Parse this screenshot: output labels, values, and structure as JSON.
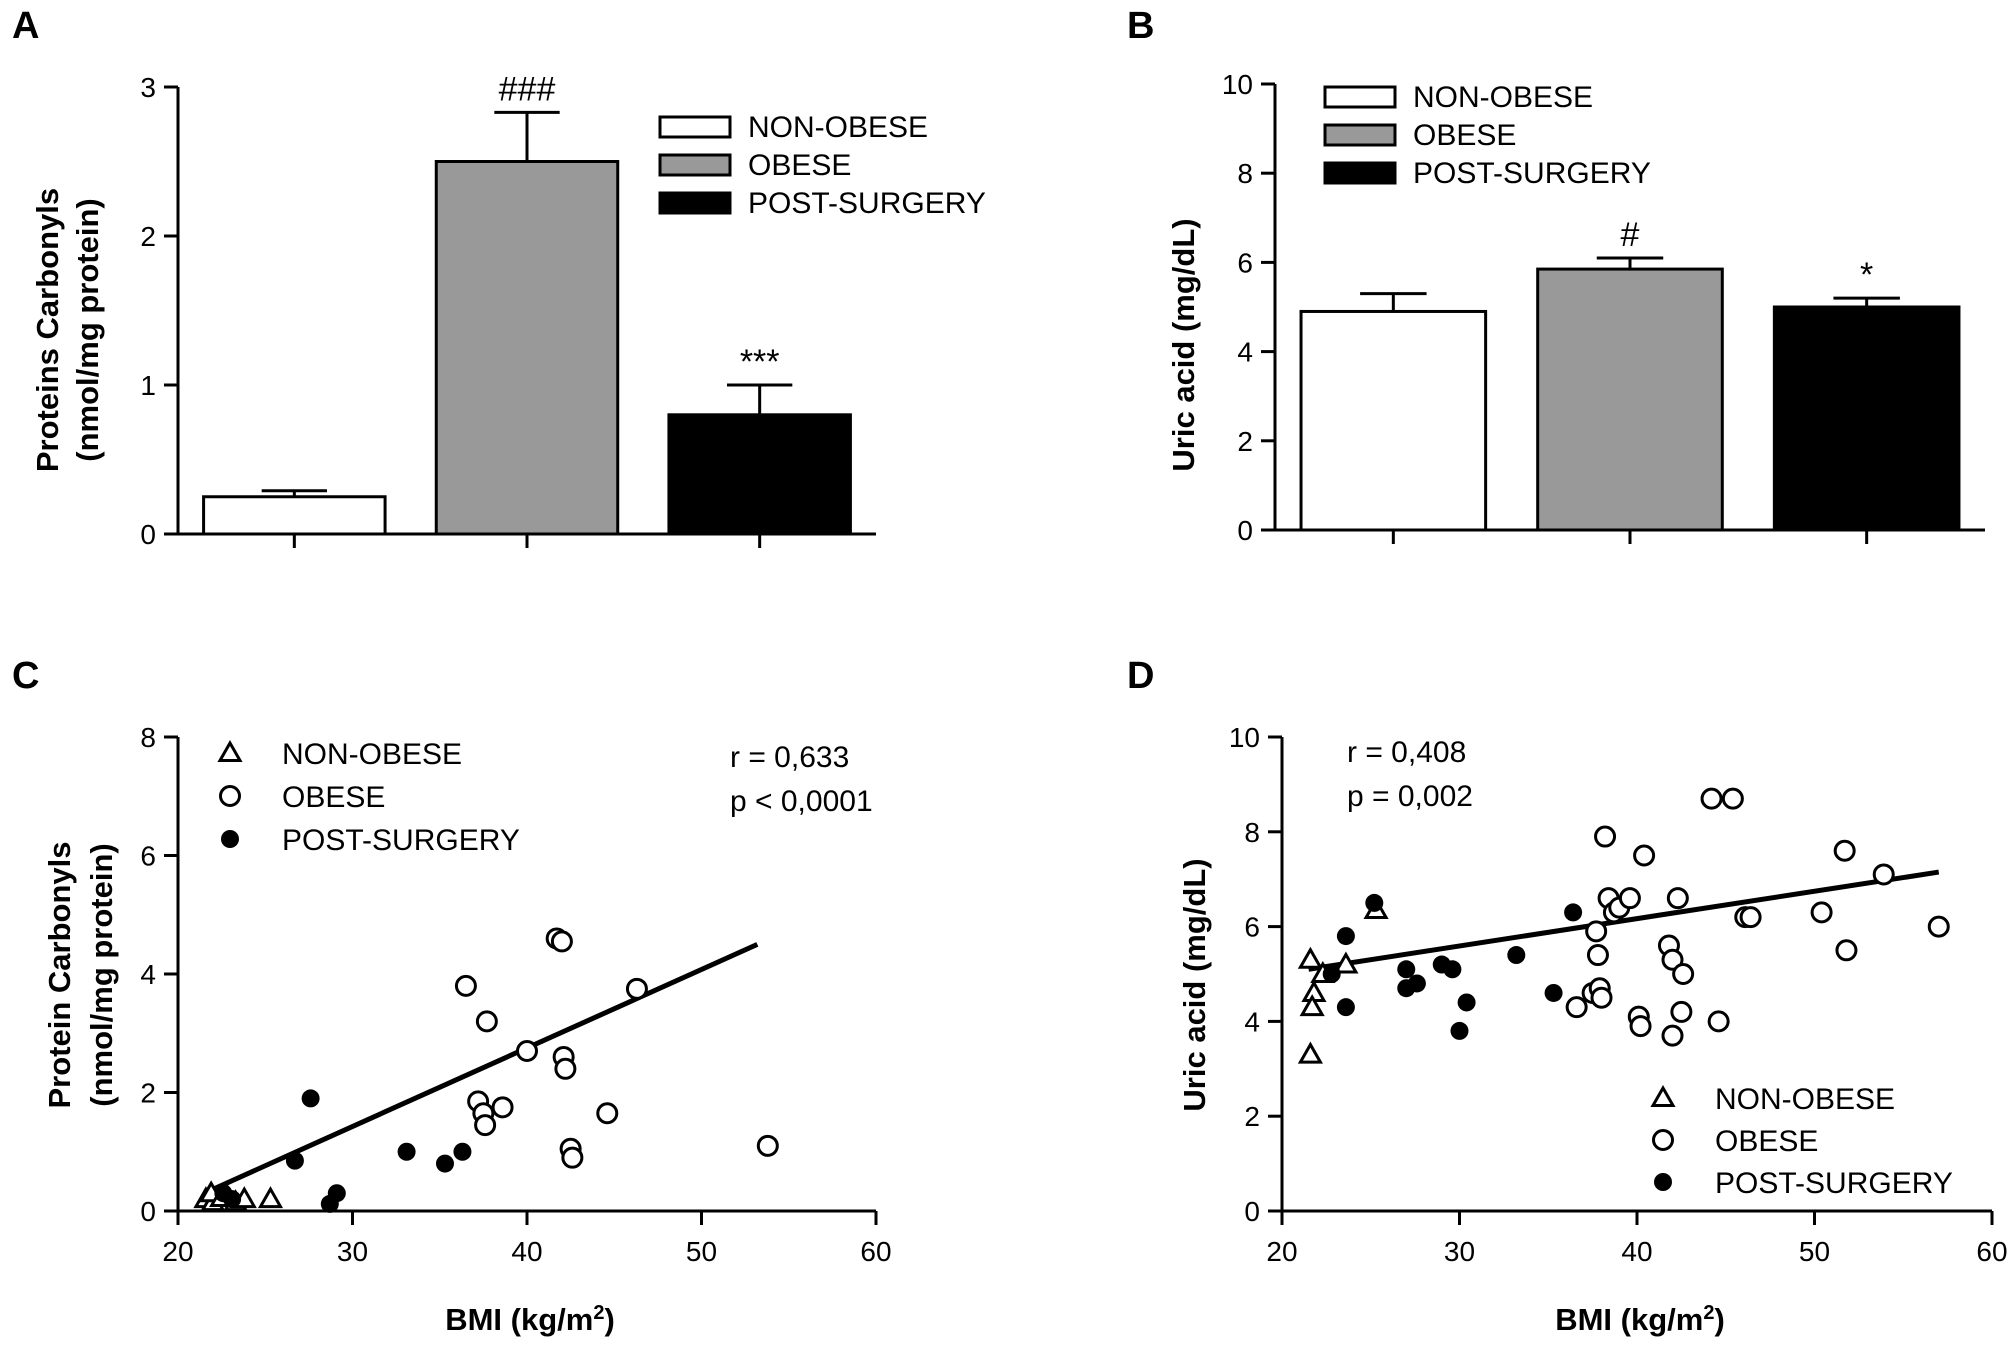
{
  "colors": {
    "non_obese": "#ffffff",
    "obese": "#999999",
    "post_surgery": "#000000",
    "axis": "#000000"
  },
  "chart_data": [
    {
      "panel": "A",
      "type": "bar",
      "ylabel_line1": "Proteins Carbonyls",
      "ylabel_line2": "(nmol/mg protein)",
      "xlabel": "",
      "ylim": [
        0,
        3
      ],
      "yticks": [
        "0",
        "1",
        "2",
        "3"
      ],
      "legend": [
        "NON-OBESE",
        "OBESE",
        "POST-SURGERY"
      ],
      "categories": [
        "NON-OBESE",
        "OBESE",
        "POST-SURGERY"
      ],
      "values": [
        0.25,
        2.5,
        0.8
      ],
      "errors": [
        0.04,
        0.33,
        0.2
      ],
      "annotations": [
        "",
        "###",
        "***"
      ]
    },
    {
      "panel": "B",
      "type": "bar",
      "ylabel": "Uric acid (mg/dL)",
      "xlabel": "",
      "ylim": [
        0,
        10
      ],
      "yticks": [
        "0",
        "2",
        "4",
        "6",
        "8",
        "10"
      ],
      "legend": [
        "NON-OBESE",
        "OBESE",
        "POST-SURGERY"
      ],
      "categories": [
        "NON-OBESE",
        "OBESE",
        "POST-SURGERY"
      ],
      "values": [
        4.9,
        5.85,
        5.0
      ],
      "errors": [
        0.4,
        0.25,
        0.2
      ],
      "annotations": [
        "",
        "#",
        "*"
      ]
    },
    {
      "panel": "C",
      "type": "scatter",
      "ylabel_line1": "Protein Carbonyls",
      "ylabel_line2": "(nmol/mg protein)",
      "xlabel": "BMI (kg/m",
      "xlabel_sup": "2",
      "xlabel_tail": ")",
      "xlim": [
        20,
        60
      ],
      "ylim": [
        0,
        8
      ],
      "xticks": [
        "20",
        "30",
        "40",
        "50",
        "60"
      ],
      "yticks": [
        "0",
        "2",
        "4",
        "6",
        "8"
      ],
      "legend": [
        "NON-OBESE",
        "OBESE",
        "POST-SURGERY"
      ],
      "stats": [
        "r = 0,633",
        "p < 0,0001"
      ],
      "fit_line": {
        "x": [
          21.5,
          53.2
        ],
        "y": [
          0.3,
          4.5
        ]
      },
      "series": [
        {
          "name": "NON-OBESE",
          "marker": "triangle",
          "points": [
            [
              21.6,
              0.2
            ],
            [
              22.0,
              0.15
            ],
            [
              22.8,
              0.25
            ],
            [
              23.3,
              0.15
            ],
            [
              23.8,
              0.2
            ],
            [
              25.3,
              0.2
            ],
            [
              21.9,
              0.3
            ],
            [
              22.5,
              0.22
            ]
          ]
        },
        {
          "name": "OBESE",
          "marker": "circle",
          "points": [
            [
              36.5,
              3.8
            ],
            [
              37.7,
              3.2
            ],
            [
              41.7,
              4.6
            ],
            [
              42.0,
              4.55
            ],
            [
              46.3,
              3.75
            ],
            [
              40.0,
              2.7
            ],
            [
              42.1,
              2.6
            ],
            [
              42.2,
              2.4
            ],
            [
              37.2,
              1.85
            ],
            [
              37.5,
              1.65
            ],
            [
              37.6,
              1.45
            ],
            [
              38.6,
              1.75
            ],
            [
              44.6,
              1.65
            ],
            [
              42.5,
              1.05
            ],
            [
              42.6,
              0.9
            ],
            [
              53.8,
              1.1
            ]
          ]
        },
        {
          "name": "POST-SURGERY",
          "marker": "dot",
          "points": [
            [
              27.6,
              1.9
            ],
            [
              26.7,
              0.85
            ],
            [
              33.1,
              1.0
            ],
            [
              35.3,
              0.8
            ],
            [
              36.3,
              1.0
            ],
            [
              29.1,
              0.3
            ],
            [
              28.7,
              0.12
            ],
            [
              22.6,
              0.3
            ],
            [
              23.1,
              0.2
            ]
          ]
        }
      ]
    },
    {
      "panel": "D",
      "type": "scatter",
      "ylabel": "Uric acid (mg/dL)",
      "xlabel": "BMI (kg/m",
      "xlabel_sup": "2",
      "xlabel_tail": ")",
      "xlim": [
        20,
        60
      ],
      "ylim": [
        0,
        10
      ],
      "xticks": [
        "20",
        "30",
        "40",
        "50",
        "60"
      ],
      "yticks": [
        "0",
        "2",
        "4",
        "6",
        "8",
        "10"
      ],
      "legend": [
        "NON-OBESE",
        "OBESE",
        "POST-SURGERY"
      ],
      "stats": [
        "r = 0,408",
        "p = 0,002"
      ],
      "fit_line": {
        "x": [
          21.5,
          57.0
        ],
        "y": [
          5.1,
          7.15
        ]
      },
      "series": [
        {
          "name": "NON-OBESE",
          "marker": "triangle",
          "points": [
            [
              21.6,
              5.3
            ],
            [
              21.8,
              4.6
            ],
            [
              21.7,
              4.3
            ],
            [
              21.6,
              3.3
            ],
            [
              23.6,
              5.2
            ],
            [
              25.3,
              6.35
            ],
            [
              22.3,
              5.0
            ]
          ]
        },
        {
          "name": "OBESE",
          "marker": "circle",
          "points": [
            [
              38.2,
              7.9
            ],
            [
              38.4,
              6.6
            ],
            [
              38.7,
              6.3
            ],
            [
              39.0,
              6.4
            ],
            [
              39.6,
              6.6
            ],
            [
              40.4,
              7.5
            ],
            [
              37.7,
              5.9
            ],
            [
              37.8,
              5.4
            ],
            [
              37.5,
              4.6
            ],
            [
              37.9,
              4.7
            ],
            [
              38.0,
              4.5
            ],
            [
              36.6,
              4.3
            ],
            [
              40.1,
              4.1
            ],
            [
              40.2,
              3.9
            ],
            [
              42.3,
              6.6
            ],
            [
              41.8,
              5.6
            ],
            [
              42.0,
              5.3
            ],
            [
              42.6,
              5.0
            ],
            [
              42.5,
              4.2
            ],
            [
              42.0,
              3.7
            ],
            [
              44.6,
              4.0
            ],
            [
              44.2,
              8.7
            ],
            [
              45.4,
              8.7
            ],
            [
              46.1,
              6.2
            ],
            [
              46.4,
              6.2
            ],
            [
              50.4,
              6.3
            ],
            [
              51.7,
              7.6
            ],
            [
              51.8,
              5.5
            ],
            [
              53.9,
              7.1
            ],
            [
              57.0,
              6.0
            ]
          ]
        },
        {
          "name": "POST-SURGERY",
          "marker": "dot",
          "points": [
            [
              25.2,
              6.5
            ],
            [
              23.6,
              5.8
            ],
            [
              22.8,
              5.0
            ],
            [
              23.6,
              4.3
            ],
            [
              27.0,
              5.1
            ],
            [
              27.0,
              4.7
            ],
            [
              27.6,
              4.8
            ],
            [
              29.0,
              5.2
            ],
            [
              29.6,
              5.1
            ],
            [
              30.4,
              4.4
            ],
            [
              30.0,
              3.8
            ],
            [
              33.2,
              5.4
            ],
            [
              36.4,
              6.3
            ],
            [
              35.3,
              4.6
            ]
          ]
        }
      ]
    }
  ]
}
